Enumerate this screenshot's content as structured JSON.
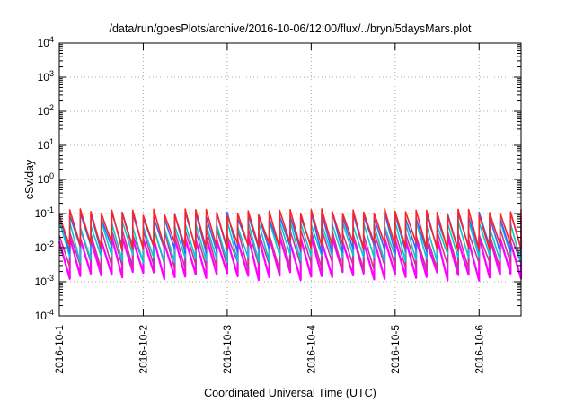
{
  "chart_data": {
    "type": "line",
    "title": "/data/run/goesPlots/archive/2016-10-06/12:00/flux/../bryn/5daysMars.plot",
    "xlabel": "Coordinated Universal Time (UTC)",
    "ylabel": "cSv/day",
    "y_scale": "log",
    "ylim_exponents": [
      -4,
      4
    ],
    "y_ticks": [
      {
        "base": "10",
        "exp": "4"
      },
      {
        "base": "10",
        "exp": "3"
      },
      {
        "base": "10",
        "exp": "2"
      },
      {
        "base": "10",
        "exp": "1"
      },
      {
        "base": "10",
        "exp": "0"
      },
      {
        "base": "10",
        "exp": "-1"
      },
      {
        "base": "10",
        "exp": "-2"
      },
      {
        "base": "10",
        "exp": "-3"
      },
      {
        "base": "10",
        "exp": "-4"
      }
    ],
    "xlim": [
      "2016-10-01T00:00",
      "2016-10-06T12:00"
    ],
    "x_tick_labels": [
      "2016-10-1",
      "2016-10-2",
      "2016-10-3",
      "2016-10-4",
      "2016-10-5",
      "2016-10-6"
    ],
    "grid": true,
    "grid_style": "dotted",
    "legend": "none",
    "sawtooth_cycle_hours": 3,
    "series": [
      {
        "color": "#ff00ff",
        "peak": 0.018,
        "trough": 0.0015
      },
      {
        "color": "#cc3399",
        "peak": 0.03,
        "trough": 0.003
      },
      {
        "color": "#00cccc",
        "peak": 0.05,
        "trough": 0.005
      },
      {
        "color": "#3366ff",
        "peak": 0.09,
        "trough": 0.009
      },
      {
        "color": "#ff2222",
        "peak": 0.11,
        "trough": 0.011
      }
    ]
  }
}
